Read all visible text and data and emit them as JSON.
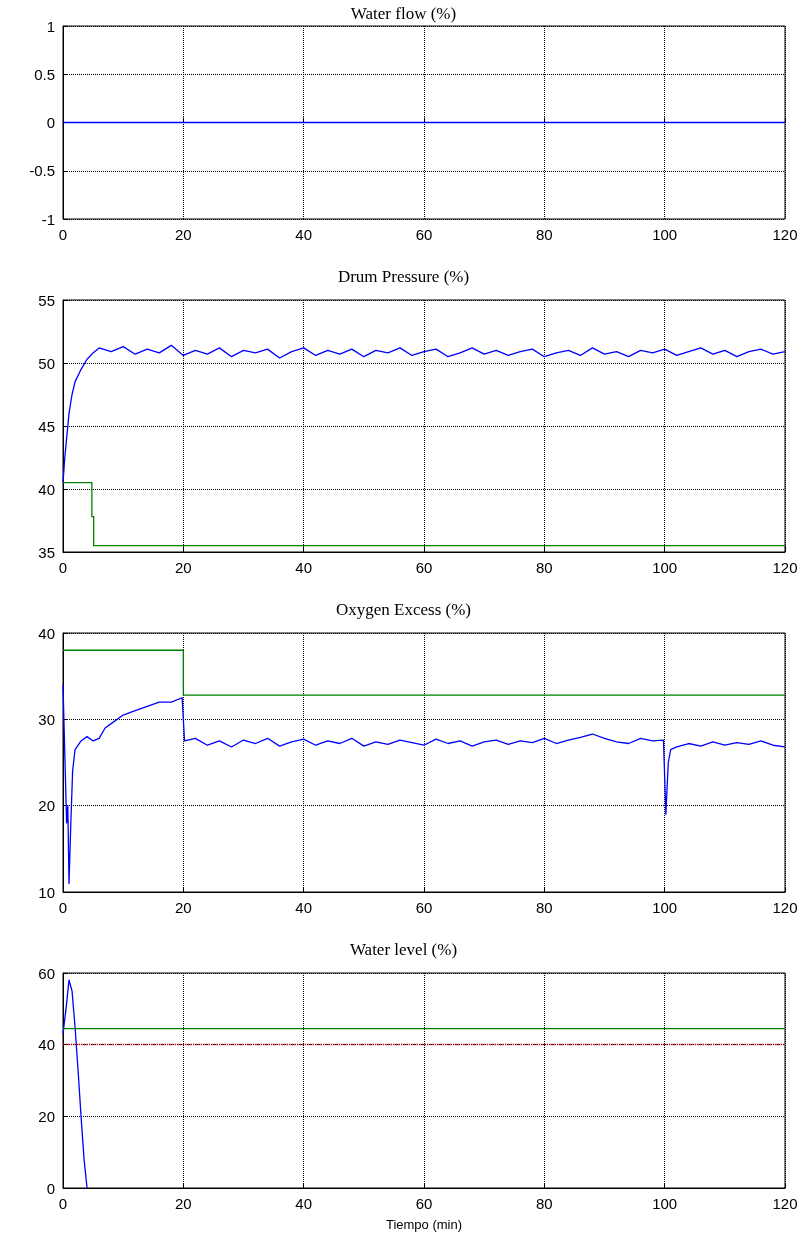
{
  "chart_data": [
    {
      "type": "line",
      "title": "Water flow (%)",
      "xlim": [
        0,
        120
      ],
      "xticks": [
        0,
        20,
        40,
        60,
        80,
        100,
        120
      ],
      "ylim": [
        -1,
        1
      ],
      "yticks": [
        -1,
        -0.5,
        0,
        0.5,
        1
      ],
      "grid": true,
      "series": [
        {
          "color": "#0000ff",
          "x": [
            0,
            120
          ],
          "values": [
            0,
            0
          ]
        }
      ]
    },
    {
      "type": "line",
      "title": "Drum Pressure (%)",
      "xlim": [
        0,
        120
      ],
      "xticks": [
        0,
        20,
        40,
        60,
        80,
        100,
        120
      ],
      "ylim": [
        35,
        55
      ],
      "yticks": [
        35,
        40,
        45,
        50,
        55
      ],
      "grid": true,
      "series": [
        {
          "color": "#0000ff",
          "x": [
            0,
            0.3,
            0.6,
            1,
            1.5,
            2,
            3,
            4,
            5,
            6,
            8,
            10,
            12,
            14,
            16,
            18,
            20,
            22,
            24,
            26,
            28,
            30,
            32,
            34,
            36,
            38,
            40,
            42,
            44,
            46,
            48,
            50,
            52,
            54,
            56,
            58,
            60,
            62,
            64,
            66,
            68,
            70,
            72,
            74,
            76,
            78,
            80,
            82,
            84,
            86,
            88,
            90,
            92,
            94,
            96,
            98,
            100,
            102,
            104,
            106,
            108,
            110,
            112,
            114,
            116,
            118,
            120
          ],
          "values": [
            40.5,
            42.5,
            44,
            46,
            47.5,
            48.5,
            49.5,
            50.3,
            50.8,
            51.2,
            50.9,
            51.3,
            50.7,
            51.1,
            50.8,
            51.4,
            50.6,
            51.0,
            50.7,
            51.2,
            50.5,
            51.0,
            50.8,
            51.1,
            50.4,
            50.9,
            51.2,
            50.6,
            51.0,
            50.7,
            51.1,
            50.5,
            51.0,
            50.8,
            51.2,
            50.6,
            50.9,
            51.1,
            50.5,
            50.8,
            51.2,
            50.7,
            51.0,
            50.6,
            50.9,
            51.1,
            50.5,
            50.8,
            51.0,
            50.6,
            51.2,
            50.7,
            50.9,
            50.5,
            51.0,
            50.8,
            51.1,
            50.6,
            50.9,
            51.2,
            50.7,
            51.0,
            50.5,
            50.9,
            51.1,
            50.7,
            50.9
          ]
        },
        {
          "color": "#008000",
          "x": [
            0,
            4.8,
            4.8,
            5.1,
            5.1,
            120
          ],
          "values": [
            40.5,
            40.5,
            37.8,
            37.8,
            35.5,
            35.5
          ]
        }
      ]
    },
    {
      "type": "line",
      "title": "Oxygen Excess (%)",
      "xlim": [
        0,
        120
      ],
      "xticks": [
        0,
        20,
        40,
        60,
        80,
        100,
        120
      ],
      "ylim": [
        10,
        40
      ],
      "yticks": [
        10,
        20,
        30,
        40
      ],
      "grid": true,
      "series": [
        {
          "color": "#0000ff",
          "x": [
            0,
            0.3,
            0.6,
            0.8,
            1,
            1.3,
            1.6,
            2,
            3,
            4,
            5,
            6,
            7,
            8,
            10,
            12,
            14,
            16,
            18,
            19.8,
            20.2,
            22,
            24,
            26,
            28,
            30,
            32,
            34,
            36,
            38,
            40,
            42,
            44,
            46,
            48,
            50,
            52,
            54,
            56,
            58,
            60,
            62,
            64,
            66,
            68,
            70,
            72,
            74,
            76,
            78,
            80,
            82,
            84,
            86,
            88,
            90,
            92,
            94,
            96,
            98,
            99.8,
            100.2,
            100.6,
            101,
            102,
            104,
            106,
            108,
            110,
            112,
            114,
            116,
            118,
            120
          ],
          "values": [
            34,
            26,
            18,
            20,
            11,
            18,
            24,
            26.5,
            27.5,
            28,
            27.5,
            27.8,
            29,
            29.5,
            30.5,
            31,
            31.5,
            32,
            32,
            32.5,
            27.5,
            27.8,
            27,
            27.5,
            26.8,
            27.6,
            27.2,
            27.8,
            26.9,
            27.4,
            27.7,
            27,
            27.5,
            27.2,
            27.8,
            26.9,
            27.4,
            27.1,
            27.6,
            27.3,
            27,
            27.7,
            27.2,
            27.5,
            26.9,
            27.4,
            27.6,
            27.1,
            27.5,
            27.3,
            27.8,
            27.2,
            27.6,
            27.9,
            28.3,
            27.8,
            27.4,
            27.2,
            27.8,
            27.5,
            27.6,
            19,
            25,
            26.5,
            26.8,
            27.2,
            26.9,
            27.4,
            27,
            27.3,
            27.1,
            27.5,
            27,
            26.8
          ]
        },
        {
          "color": "#008000",
          "x": [
            0,
            20,
            20,
            120
          ],
          "values": [
            38,
            38,
            32.8,
            32.8
          ]
        }
      ]
    },
    {
      "type": "line",
      "title": "Water level (%)",
      "xlabel": "Tiempo (min)",
      "xlim": [
        0,
        120
      ],
      "xticks": [
        0,
        20,
        40,
        60,
        80,
        100,
        120
      ],
      "ylim": [
        0,
        60
      ],
      "yticks": [
        0,
        20,
        40,
        60
      ],
      "grid": true,
      "ref_lines": [
        {
          "axis": "y",
          "value": 40,
          "color": "#cc0000",
          "line_style": "dotted"
        }
      ],
      "series": [
        {
          "color": "#0000ff",
          "x": [
            0,
            0.5,
            1,
            1.5,
            2,
            2.5,
            3,
            3.5,
            4
          ],
          "values": [
            43,
            50,
            58,
            55,
            45,
            33,
            20,
            8,
            0
          ]
        },
        {
          "color": "#008000",
          "x": [
            0,
            120
          ],
          "values": [
            44.5,
            44.5
          ]
        }
      ]
    }
  ]
}
